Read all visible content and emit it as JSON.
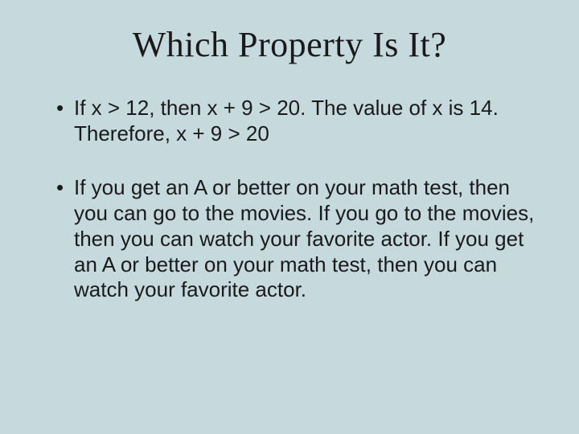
{
  "slide": {
    "background_color": "#c6d9dd",
    "title": "Which Property Is It?",
    "title_fontsize": 44,
    "title_font_family": "Georgia, serif",
    "title_color": "#1a1a1a",
    "body_fontsize": 26,
    "body_color": "#1a1a1a",
    "bullets": [
      "If x > 12, then x + 9 > 20.  The value of x is 14.  Therefore, x + 9 > 20",
      "If you get an A or better on your math test, then you can go to the movies.  If you go to the movies, then you can watch your favorite actor.  If you get an A or better on your math test, then you can watch your favorite actor."
    ]
  }
}
